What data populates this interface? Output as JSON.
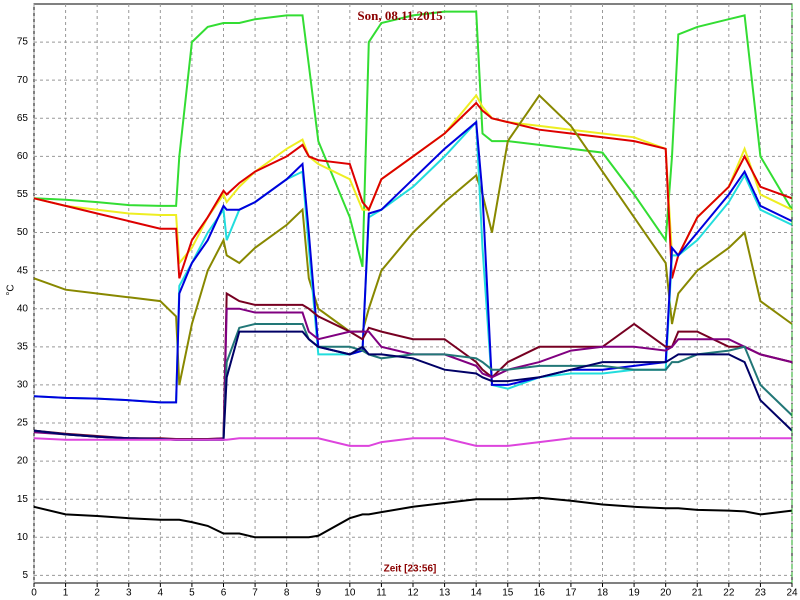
{
  "chart_data": {
    "type": "line",
    "title": "Son, 08.11.2015",
    "x_label": "Zeit [23:56]",
    "y_label": "°C",
    "x": [
      0,
      1,
      2,
      3,
      4,
      4.5,
      4.6,
      5,
      5.5,
      6,
      6.1,
      6.5,
      7,
      8,
      8.5,
      8.7,
      9,
      10,
      10.4,
      10.6,
      11,
      12,
      13,
      14,
      14.2,
      14.5,
      15,
      16,
      17,
      18,
      19,
      20,
      20.2,
      20.4,
      21,
      22,
      22.5,
      23,
      24
    ],
    "xlim": [
      0,
      24
    ],
    "xticks": [
      0,
      1,
      2,
      3,
      4,
      5,
      6,
      7,
      8,
      9,
      10,
      11,
      12,
      13,
      14,
      15,
      16,
      17,
      18,
      19,
      20,
      21,
      22,
      23,
      24
    ],
    "ylim": [
      4,
      80
    ],
    "yticks": [
      5,
      10,
      15,
      20,
      25,
      30,
      35,
      40,
      45,
      50,
      55,
      60,
      65,
      70,
      75
    ],
    "grid": true,
    "series": [
      {
        "color": "#33dd33",
        "values": [
          54.5,
          54.3,
          54,
          53.6,
          53.5,
          53.5,
          60,
          75,
          77,
          77.5,
          77.5,
          77.5,
          78,
          78.5,
          78.5,
          72,
          62,
          52,
          45.5,
          75,
          77.5,
          78.5,
          79,
          79,
          63,
          62,
          62,
          61.5,
          61,
          60.5,
          55,
          49,
          60,
          76,
          77,
          78,
          78.5,
          60,
          53
        ]
      },
      {
        "color": "#eeee22",
        "values": [
          54.5,
          53.5,
          53,
          52.5,
          52.3,
          52.3,
          46,
          48,
          52,
          55,
          54,
          56,
          58,
          61,
          62.2,
          60,
          59,
          57,
          53,
          53,
          57,
          60,
          63,
          68,
          66.5,
          65,
          64.5,
          64,
          63.5,
          63,
          62.5,
          61,
          47,
          47,
          52,
          56,
          61,
          55,
          53
        ]
      },
      {
        "color": "#dd0000",
        "values": [
          54.5,
          53.5,
          52.5,
          51.5,
          50.5,
          50.5,
          44,
          49,
          52,
          55.5,
          55,
          56.5,
          58,
          60,
          61.5,
          60,
          59.5,
          59,
          54,
          53,
          57,
          60,
          63,
          67,
          66,
          65,
          64.5,
          63.5,
          63,
          62.5,
          62,
          61,
          44,
          47,
          52,
          56,
          60,
          56,
          54.5
        ]
      },
      {
        "color": "#888800",
        "values": [
          44,
          42.5,
          42,
          41.5,
          41,
          39,
          30,
          38,
          45,
          49,
          47,
          46,
          48,
          51,
          53,
          44,
          40,
          37,
          37,
          40,
          45,
          50,
          54,
          57.5,
          55,
          50,
          62,
          68,
          64,
          58,
          52,
          46,
          38,
          42,
          45,
          48,
          50,
          41,
          38
        ]
      },
      {
        "color": "#22dddd",
        "values": [
          28.5,
          28.3,
          28.2,
          28,
          27.7,
          27.7,
          43,
          46,
          50,
          53,
          49,
          53,
          54,
          57,
          58,
          48,
          34,
          34,
          34.5,
          52,
          53,
          56,
          60,
          64.5,
          48,
          30,
          29.5,
          31,
          31.5,
          31.5,
          32,
          32,
          47,
          47,
          49,
          54,
          57.5,
          53,
          51
        ]
      },
      {
        "color": "#0000dd",
        "values": [
          28.5,
          28.3,
          28.2,
          28,
          27.7,
          27.7,
          42,
          46,
          49,
          53.5,
          53,
          53,
          54,
          57,
          59,
          50,
          35,
          34,
          34.5,
          52.5,
          53,
          57,
          61,
          64.5,
          55,
          30,
          30,
          31,
          32,
          32,
          32.5,
          33,
          48,
          47,
          50,
          55,
          58,
          53.5,
          51.5
        ]
      },
      {
        "color": "#770022",
        "values": [
          24,
          23.6,
          23.3,
          23,
          23,
          22.9,
          22.9,
          22.9,
          22.9,
          23,
          42,
          41,
          40.5,
          40.5,
          40.5,
          40,
          39,
          37,
          36,
          37.5,
          37,
          36,
          36,
          33,
          32,
          31,
          33,
          35,
          35,
          35,
          38,
          35,
          35,
          37,
          37,
          35,
          35,
          34,
          33
        ]
      },
      {
        "color": "#800080",
        "values": [
          23.8,
          23.5,
          23.2,
          23,
          22.9,
          22.8,
          22.8,
          22.8,
          22.8,
          23,
          40,
          40,
          39.5,
          39.5,
          39.5,
          37,
          36,
          37,
          37,
          37,
          35,
          34,
          34,
          32.5,
          31.5,
          31,
          32,
          33,
          34.5,
          35,
          35,
          34.5,
          35,
          36,
          36,
          36,
          35,
          34,
          33
        ]
      },
      {
        "color": "#227777",
        "values": [
          24,
          23.5,
          23.2,
          23,
          22.9,
          22.8,
          22.8,
          22.8,
          22.8,
          22.8,
          33,
          37.5,
          38,
          38,
          38,
          36,
          35,
          35,
          34.5,
          34,
          33.5,
          34,
          34,
          33.5,
          33,
          32,
          32,
          32.5,
          32.5,
          32.5,
          32,
          32,
          33,
          33,
          34,
          34.5,
          35,
          30,
          26
        ]
      },
      {
        "color": "#000066",
        "values": [
          24,
          23.5,
          23.2,
          23,
          22.9,
          22.8,
          22.8,
          22.8,
          22.8,
          22.8,
          31,
          37,
          37,
          37,
          37,
          36,
          35,
          34,
          35,
          34,
          34,
          33.5,
          32,
          31.5,
          31,
          30.5,
          30.5,
          31,
          32,
          33,
          33,
          33,
          33.5,
          34,
          34,
          34,
          33,
          28,
          24
        ]
      },
      {
        "color": "#dd44dd",
        "values": [
          23,
          22.8,
          22.8,
          22.8,
          22.8,
          22.8,
          22.8,
          22.8,
          22.8,
          22.8,
          22.8,
          23,
          23,
          23,
          23,
          23,
          23,
          22,
          22,
          22,
          22.5,
          23,
          23,
          22,
          22,
          22,
          22,
          22.5,
          23,
          23,
          23,
          23,
          23,
          23,
          23,
          23,
          23,
          23,
          23
        ]
      },
      {
        "color": "#000000",
        "values": [
          14,
          13,
          12.8,
          12.5,
          12.3,
          12.3,
          12.3,
          12,
          11.5,
          10.5,
          10.5,
          10.5,
          10,
          10,
          10,
          10,
          10.2,
          12.5,
          13,
          13,
          13.3,
          14,
          14.5,
          15,
          15,
          15,
          15,
          15.2,
          14.8,
          14.3,
          14,
          13.8,
          13.8,
          13.8,
          13.6,
          13.5,
          13.4,
          13,
          13.5
        ]
      }
    ]
  }
}
